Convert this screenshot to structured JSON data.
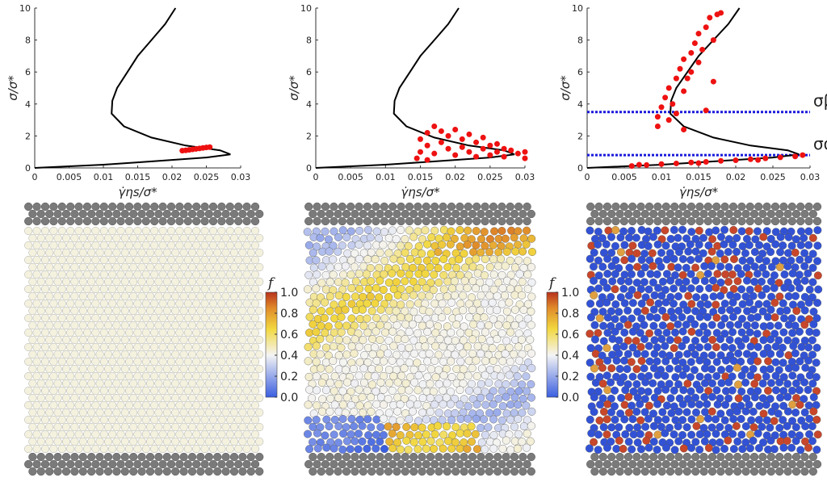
{
  "chart_data": [
    {
      "type": "scatter",
      "xlabel": "γ̇ηs/σ*",
      "ylabel": "σ/σ*",
      "xlim": [
        0,
        0.03
      ],
      "ylim": [
        0,
        10
      ],
      "xticks": [
        0,
        0.005,
        0.01,
        0.015,
        0.02,
        0.025,
        0.03
      ],
      "yticks": [
        0,
        2,
        4,
        6,
        8,
        10
      ],
      "curve": {
        "color": "#000000",
        "x": [
          0,
          0.005,
          0.01,
          0.015,
          0.02,
          0.025,
          0.0285,
          0.027,
          0.022,
          0.017,
          0.013,
          0.0112,
          0.0113,
          0.012,
          0.0135,
          0.015,
          0.017,
          0.019,
          0.0205
        ],
        "values": [
          0,
          0.1,
          0.2,
          0.35,
          0.5,
          0.65,
          0.85,
          1.1,
          1.4,
          1.9,
          2.6,
          3.4,
          4.2,
          5,
          6,
          7,
          8,
          9,
          10
        ]
      },
      "series": [
        {
          "color": "#ee1111",
          "x": [
            0.0215,
            0.022,
            0.0225,
            0.023,
            0.0235,
            0.024,
            0.0245,
            0.025,
            0.0255
          ],
          "values": [
            1.08,
            1.1,
            1.13,
            1.16,
            1.19,
            1.22,
            1.25,
            1.28,
            1.3
          ]
        }
      ]
    },
    {
      "type": "scatter",
      "xlabel": "γ̇ηs/σ*",
      "ylabel": "σ/σ*",
      "xlim": [
        0,
        0.03
      ],
      "ylim": [
        0,
        10
      ],
      "xticks": [
        0,
        0.005,
        0.01,
        0.015,
        0.02,
        0.025,
        0.03
      ],
      "yticks": [
        0,
        2,
        4,
        6,
        8,
        10
      ],
      "curve": {
        "color": "#000000",
        "x": [
          0,
          0.005,
          0.01,
          0.015,
          0.02,
          0.025,
          0.0285,
          0.027,
          0.022,
          0.017,
          0.013,
          0.0112,
          0.0113,
          0.012,
          0.0135,
          0.015,
          0.017,
          0.019,
          0.0205
        ],
        "values": [
          0,
          0.1,
          0.2,
          0.35,
          0.5,
          0.65,
          0.85,
          1.1,
          1.4,
          1.9,
          2.6,
          3.4,
          4.2,
          5,
          6,
          7,
          8,
          9,
          10
        ]
      },
      "series": [
        {
          "color": "#ee1111",
          "x": [
            0.015,
            0.015,
            0.016,
            0.016,
            0.017,
            0.017,
            0.018,
            0.018,
            0.019,
            0.019,
            0.02,
            0.02,
            0.021,
            0.021,
            0.022,
            0.022,
            0.023,
            0.023,
            0.024,
            0.024,
            0.025,
            0.025,
            0.026,
            0.026,
            0.027,
            0.027,
            0.028,
            0.029,
            0.03,
            0.03,
            0.0145,
            0.016
          ],
          "values": [
            1.0,
            1.8,
            2.2,
            1.4,
            2.6,
            0.9,
            2.3,
            1.6,
            2.0,
            1.2,
            2.4,
            0.8,
            1.8,
            1.3,
            2.1,
            1.0,
            1.6,
            0.7,
            1.9,
            1.2,
            1.4,
            0.8,
            1.5,
            1.0,
            1.2,
            0.7,
            1.1,
            0.9,
            1.0,
            0.6,
            0.6,
            0.5
          ]
        }
      ]
    },
    {
      "type": "scatter",
      "xlabel": "γ̇ηs/σ*",
      "ylabel": "σ/σ*",
      "xlim": [
        0,
        0.03
      ],
      "ylim": [
        0,
        10
      ],
      "xticks": [
        0,
        0.005,
        0.01,
        0.015,
        0.02,
        0.025,
        0.03
      ],
      "yticks": [
        0,
        2,
        4,
        6,
        8,
        10
      ],
      "curve": {
        "color": "#000000",
        "x": [
          0,
          0.005,
          0.01,
          0.015,
          0.02,
          0.025,
          0.0285,
          0.027,
          0.022,
          0.017,
          0.013,
          0.0112,
          0.0113,
          0.012,
          0.0135,
          0.015,
          0.017,
          0.019,
          0.0205
        ],
        "values": [
          0,
          0.1,
          0.2,
          0.35,
          0.5,
          0.65,
          0.85,
          1.1,
          1.4,
          1.9,
          2.6,
          3.4,
          4.2,
          5,
          6,
          7,
          8,
          9,
          10
        ]
      },
      "series": [
        {
          "color": "#ee1111",
          "x": [
            0.0095,
            0.0095,
            0.01,
            0.0105,
            0.011,
            0.011,
            0.0115,
            0.012,
            0.012,
            0.0125,
            0.013,
            0.013,
            0.0135,
            0.014,
            0.014,
            0.0145,
            0.015,
            0.015,
            0.0155,
            0.016,
            0.0165,
            0.017,
            0.0175,
            0.018,
            0.016,
            0.013,
            0.017,
            0.006,
            0.008,
            0.01,
            0.012,
            0.014,
            0.016,
            0.018,
            0.02,
            0.022,
            0.024,
            0.026,
            0.028,
            0.029,
            0.007,
            0.015,
            0.023
          ],
          "values": [
            3.2,
            2.6,
            3.8,
            4.4,
            3.0,
            5.0,
            4.0,
            5.6,
            3.4,
            6.2,
            4.8,
            6.8,
            5.6,
            7.2,
            6.0,
            7.8,
            8.4,
            6.6,
            7.4,
            8.8,
            9.4,
            8.0,
            9.6,
            9.7,
            3.6,
            2.4,
            5.4,
            0.12,
            0.18,
            0.24,
            0.28,
            0.34,
            0.38,
            0.44,
            0.48,
            0.54,
            0.6,
            0.66,
            0.72,
            0.8,
            0.2,
            0.3,
            0.5
          ]
        }
      ],
      "hlines": [
        {
          "value": 3.5,
          "label": "σβ",
          "color": "#1a1adb"
        },
        {
          "value": 0.8,
          "label": "σα",
          "color": "#1a1adb"
        }
      ]
    }
  ],
  "colorbar": {
    "label": "f",
    "ticks": [
      {
        "value": 0,
        "label": "0.0"
      },
      {
        "value": 0.2,
        "label": "0.2"
      },
      {
        "value": 0.4,
        "label": "0.4"
      },
      {
        "value": 0.6,
        "label": "0.6"
      },
      {
        "value": 0.8,
        "label": "0.8"
      },
      {
        "value": 1,
        "label": "1.0"
      }
    ],
    "lim": [
      0,
      1
    ]
  }
}
